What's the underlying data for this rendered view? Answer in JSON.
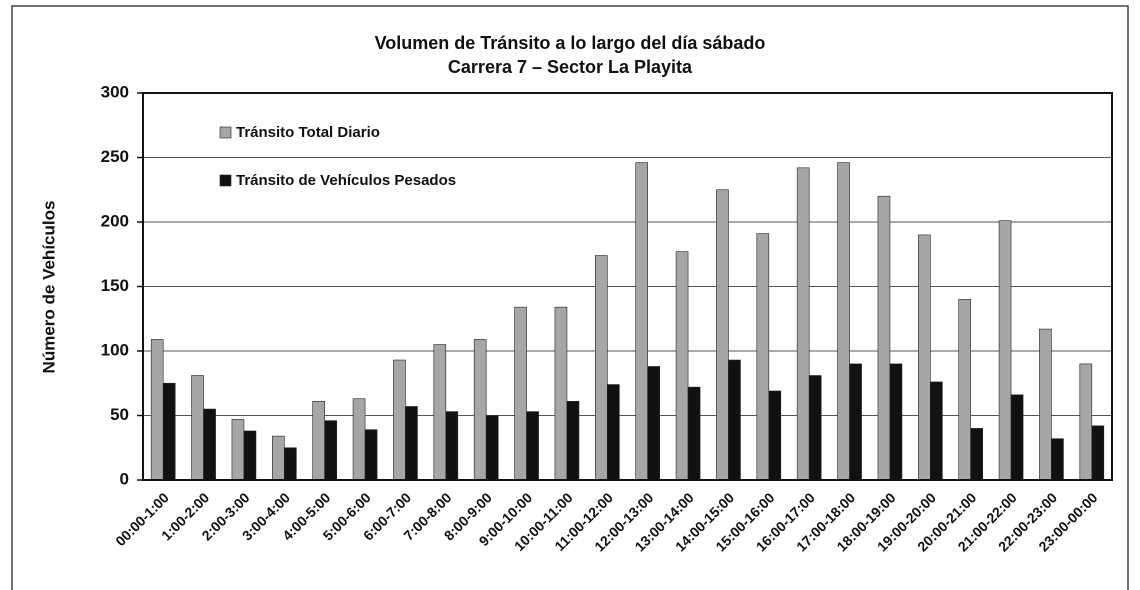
{
  "chart_data": {
    "type": "bar",
    "title": "Volumen de Tránsito a lo largo del día sábado",
    "subtitle": "Carrera 7 – Sector La Playita",
    "y_label": "Número de Vehículos",
    "categories": [
      "00:00-1:00",
      "1:00-2:00",
      "2:00-3:00",
      "3:00-4:00",
      "4:00-5:00",
      "5:00-6:00",
      "6:00-7:00",
      "7:00-8:00",
      "8:00-9:00",
      "9:00-10:00",
      "10:00-11:00",
      "11:00-12:00",
      "12:00-13:00",
      "13:00-14:00",
      "14:00-15:00",
      "15:00-16:00",
      "16:00-17:00",
      "17:00-18:00",
      "18:00-19:00",
      "19:00-20:00",
      "20:00-21:00",
      "21:00-22:00",
      "22:00-23:00",
      "23:00-00:00"
    ],
    "series": [
      {
        "name": "Tránsito Total Diario",
        "color": "#a6a6a6",
        "values": [
          109,
          81,
          47,
          34,
          61,
          63,
          93,
          105,
          109,
          134,
          134,
          174,
          246,
          177,
          225,
          191,
          242,
          246,
          220,
          190,
          140,
          201,
          117,
          90
        ]
      },
      {
        "name": "Tránsito de Vehículos Pesados",
        "color": "#111111",
        "values": [
          75,
          55,
          38,
          25,
          46,
          39,
          57,
          53,
          50,
          53,
          61,
          74,
          88,
          72,
          93,
          69,
          81,
          90,
          90,
          76,
          40,
          66,
          32,
          42
        ]
      }
    ],
    "ylim": [
      0,
      300
    ],
    "yticks": [
      0,
      50,
      100,
      150,
      200,
      250,
      300
    ],
    "grid": true,
    "legend": "top-left"
  }
}
